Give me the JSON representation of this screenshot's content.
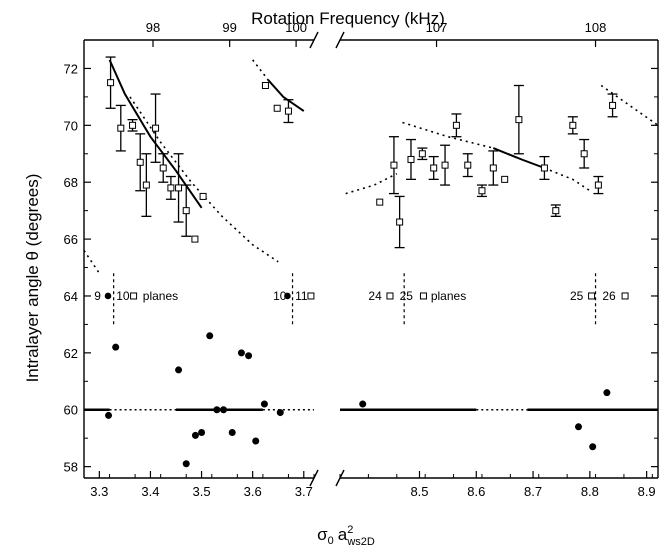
{
  "chart_data": {
    "type": "scatter",
    "top_xlabel": "Rotation Frequency (kHz)",
    "top_ticks": [
      {
        "label": "98",
        "x": 3.405
      },
      {
        "label": "99",
        "x": 3.555
      },
      {
        "label": "100",
        "x": 3.685
      },
      {
        "label": "107",
        "x": 8.53
      },
      {
        "label": "108",
        "x": 8.81
      }
    ],
    "ylabel": "Intralayer angle θ (degrees)",
    "xlabel": "σ0 a2ws2D",
    "xlabel_parts": {
      "sigma": "σ",
      "sub0": "0",
      "a": "a",
      "sup": "2",
      "sub": "ws2D"
    },
    "left_segment": {
      "xlim": [
        3.27,
        3.72
      ],
      "xticks": [
        3.3,
        3.4,
        3.5,
        3.6,
        3.7
      ],
      "xtick_labels": [
        "3.3",
        "3.4",
        "3.5",
        "3.6",
        "3.7"
      ]
    },
    "right_segment": {
      "xlim": [
        8.36,
        8.92
      ],
      "xticks": [
        8.5,
        8.6,
        8.7,
        8.8,
        8.9
      ],
      "xtick_labels": [
        "8.5",
        "8.6",
        "8.7",
        "8.8",
        "8.9"
      ]
    },
    "ylim": [
      57.6,
      73.0
    ],
    "yticks": [
      58,
      60,
      62,
      64,
      66,
      68,
      70,
      72
    ],
    "ytick_labels": [
      "58",
      "60",
      "62",
      "64",
      "66",
      "68",
      "70",
      "72"
    ],
    "open_squares": [
      {
        "x": 3.322,
        "y": 71.5,
        "err": 0.9
      },
      {
        "x": 3.342,
        "y": 69.9,
        "err": 0.8
      },
      {
        "x": 3.365,
        "y": 70.0,
        "err": 0.2
      },
      {
        "x": 3.38,
        "y": 68.7,
        "err": 1.0
      },
      {
        "x": 3.392,
        "y": 67.9,
        "err": 1.1
      },
      {
        "x": 3.41,
        "y": 69.9,
        "err": 1.2
      },
      {
        "x": 3.425,
        "y": 68.5,
        "err": 0.5
      },
      {
        "x": 3.44,
        "y": 67.8,
        "err": 0.4
      },
      {
        "x": 3.455,
        "y": 67.8,
        "err": 1.2
      },
      {
        "x": 3.47,
        "y": 67.0,
        "err": 0.9
      },
      {
        "x": 3.487,
        "y": 66.0,
        "err": 0
      },
      {
        "x": 3.503,
        "y": 67.5,
        "err": 0
      },
      {
        "x": 3.625,
        "y": 71.4,
        "err": 0
      },
      {
        "x": 3.648,
        "y": 70.6,
        "err": 0
      },
      {
        "x": 3.67,
        "y": 70.5,
        "err": 0.4
      },
      {
        "x": 8.43,
        "y": 67.3,
        "err": 0
      },
      {
        "x": 8.455,
        "y": 68.6,
        "err": 1.0
      },
      {
        "x": 8.465,
        "y": 66.6,
        "err": 0.9
      },
      {
        "x": 8.485,
        "y": 68.8,
        "err": 0.7
      },
      {
        "x": 8.505,
        "y": 69.0,
        "err": 0.2
      },
      {
        "x": 8.525,
        "y": 68.5,
        "err": 0.4
      },
      {
        "x": 8.545,
        "y": 68.6,
        "err": 0.7
      },
      {
        "x": 8.565,
        "y": 70.0,
        "err": 0.4
      },
      {
        "x": 8.585,
        "y": 68.6,
        "err": 0.4
      },
      {
        "x": 8.61,
        "y": 67.7,
        "err": 0.2
      },
      {
        "x": 8.63,
        "y": 68.5,
        "err": 0.6
      },
      {
        "x": 8.65,
        "y": 68.1,
        "err": 0
      },
      {
        "x": 8.675,
        "y": 70.2,
        "err": 1.2
      },
      {
        "x": 8.72,
        "y": 68.5,
        "err": 0.4
      },
      {
        "x": 8.74,
        "y": 67.0,
        "err": 0.2
      },
      {
        "x": 8.77,
        "y": 70.0,
        "err": 0.3
      },
      {
        "x": 8.79,
        "y": 69.0,
        "err": 0.5
      },
      {
        "x": 8.815,
        "y": 67.9,
        "err": 0.3
      },
      {
        "x": 8.84,
        "y": 70.7,
        "err": 0.4
      }
    ],
    "filled_circles": [
      {
        "x": 3.318,
        "y": 59.8
      },
      {
        "x": 3.332,
        "y": 62.2
      },
      {
        "x": 3.455,
        "y": 61.4
      },
      {
        "x": 3.47,
        "y": 58.1
      },
      {
        "x": 3.488,
        "y": 59.1
      },
      {
        "x": 3.5,
        "y": 59.2
      },
      {
        "x": 3.516,
        "y": 62.6
      },
      {
        "x": 3.53,
        "y": 60.0
      },
      {
        "x": 3.543,
        "y": 60.0
      },
      {
        "x": 3.56,
        "y": 59.2
      },
      {
        "x": 3.578,
        "y": 62.0
      },
      {
        "x": 3.592,
        "y": 61.9
      },
      {
        "x": 3.606,
        "y": 58.9
      },
      {
        "x": 3.623,
        "y": 60.2
      },
      {
        "x": 3.654,
        "y": 59.9
      },
      {
        "x": 8.4,
        "y": 60.2
      },
      {
        "x": 8.78,
        "y": 59.4
      },
      {
        "x": 8.805,
        "y": 58.7
      },
      {
        "x": 8.83,
        "y": 60.6
      }
    ],
    "annotations": [
      {
        "text": "9",
        "x": 3.29,
        "y": 64,
        "marker": "circle",
        "mx": 3.317
      },
      {
        "text": "10",
        "x": 3.333,
        "y": 64,
        "marker": "square",
        "mx": 3.367
      },
      {
        "text": "planes",
        "x": 3.385,
        "y": 64
      },
      {
        "text": "10",
        "x": 3.64,
        "y": 64,
        "marker": "circle",
        "mx": 3.668
      },
      {
        "text": "11",
        "x": 3.683,
        "y": 64,
        "marker": "square",
        "mx": 3.714
      },
      {
        "text": "24",
        "x": 8.41,
        "y": 64,
        "marker": "square",
        "mx": 8.448
      },
      {
        "text": "25",
        "x": 8.465,
        "y": 64,
        "marker": "square",
        "mx": 8.507
      },
      {
        "text": "planes",
        "x": 8.52,
        "y": 64
      },
      {
        "text": "25",
        "x": 8.765,
        "y": 64,
        "marker": "square",
        "mx": 8.803
      },
      {
        "text": "26",
        "x": 8.822,
        "y": 64,
        "marker": "square",
        "mx": 8.862
      }
    ],
    "dashed_separators": [
      3.328,
      3.678,
      8.473,
      8.81
    ],
    "curves": [
      {
        "style": "solid",
        "points": [
          [
            3.32,
            72.3
          ],
          [
            3.35,
            71.1
          ],
          [
            3.4,
            69.6
          ],
          [
            3.45,
            68.4
          ],
          [
            3.5,
            67.1
          ]
        ]
      },
      {
        "style": "dotted",
        "points": [
          [
            3.27,
            65.6
          ],
          [
            3.3,
            64.8
          ]
        ]
      },
      {
        "style": "dotted",
        "points": [
          [
            3.36,
            71.0
          ],
          [
            3.42,
            69.4
          ],
          [
            3.48,
            68.0
          ],
          [
            3.54,
            66.8
          ],
          [
            3.6,
            65.8
          ],
          [
            3.65,
            65.2
          ]
        ]
      },
      {
        "style": "dotted",
        "points": [
          [
            3.6,
            72.3
          ],
          [
            3.63,
            71.6
          ]
        ]
      },
      {
        "style": "solid",
        "points": [
          [
            3.63,
            71.6
          ],
          [
            3.66,
            71.0
          ],
          [
            3.7,
            70.5
          ]
        ]
      },
      {
        "style": "dotted",
        "points": [
          [
            8.37,
            67.6
          ],
          [
            8.42,
            67.9
          ],
          [
            8.46,
            68.3
          ]
        ]
      },
      {
        "style": "dotted",
        "points": [
          [
            8.47,
            70.1
          ],
          [
            8.55,
            69.6
          ],
          [
            8.63,
            69.2
          ]
        ]
      },
      {
        "style": "solid",
        "points": [
          [
            8.63,
            69.2
          ],
          [
            8.68,
            68.8
          ],
          [
            8.72,
            68.5
          ]
        ]
      },
      {
        "style": "dotted",
        "points": [
          [
            8.72,
            68.5
          ],
          [
            8.77,
            68.1
          ],
          [
            8.8,
            67.7
          ]
        ]
      },
      {
        "style": "dotted",
        "points": [
          [
            8.82,
            71.4
          ],
          [
            8.87,
            70.7
          ],
          [
            8.92,
            70.0
          ]
        ]
      }
    ],
    "reference_line": {
      "y": 60,
      "solid": [
        [
          3.27,
          3.32
        ],
        [
          3.45,
          3.62
        ],
        [
          8.36,
          8.6
        ],
        [
          8.69,
          8.92
        ]
      ],
      "dotted": [
        [
          3.32,
          3.45
        ],
        [
          3.62,
          3.72
        ],
        [
          8.6,
          8.69
        ]
      ]
    }
  }
}
